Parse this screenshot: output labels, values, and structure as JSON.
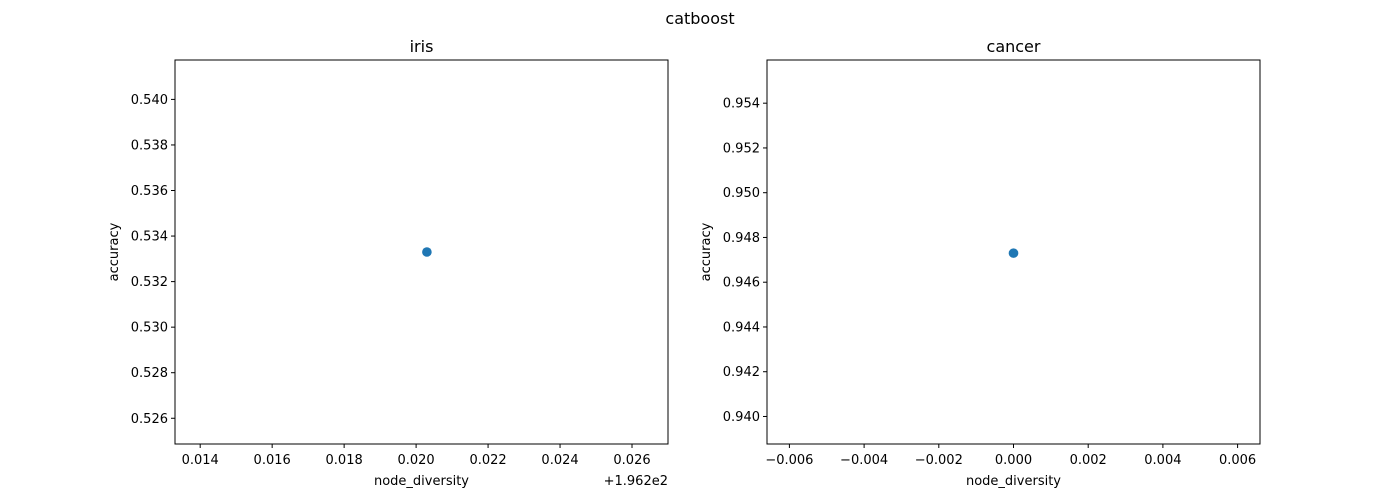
{
  "figure": {
    "suptitle": "catboost",
    "point_color": "#1f77b4"
  },
  "chart_data": [
    {
      "type": "scatter",
      "title": "iris",
      "xlabel": "node_diversity",
      "ylabel": "accuracy",
      "x_offset_label": "+1.962e2",
      "xlim": [
        0.0133,
        0.027
      ],
      "ylim": [
        0.52487,
        0.54173
      ],
      "xticks": [
        0.014,
        0.016,
        0.018,
        0.02,
        0.022,
        0.024,
        0.026
      ],
      "xtick_labels": [
        "0.014",
        "0.016",
        "0.018",
        "0.020",
        "0.022",
        "0.024",
        "0.026"
      ],
      "yticks": [
        0.526,
        0.528,
        0.53,
        0.532,
        0.534,
        0.536,
        0.538,
        0.54
      ],
      "ytick_labels": [
        "0.526",
        "0.528",
        "0.530",
        "0.532",
        "0.534",
        "0.536",
        "0.538",
        "0.540"
      ],
      "grid": false,
      "series": [
        {
          "x": [
            0.0203
          ],
          "y": [
            0.5333
          ]
        }
      ]
    },
    {
      "type": "scatter",
      "title": "cancer",
      "xlabel": "node_diversity",
      "ylabel": "accuracy",
      "x_offset_label": "",
      "xlim": [
        -0.0066,
        0.0066
      ],
      "ylim": [
        0.93877,
        0.95593
      ],
      "xticks": [
        -0.006,
        -0.004,
        -0.002,
        0.0,
        0.002,
        0.004,
        0.006
      ],
      "xtick_labels": [
        "−0.006",
        "−0.004",
        "−0.002",
        "0.000",
        "0.002",
        "0.004",
        "0.006"
      ],
      "yticks": [
        0.94,
        0.942,
        0.944,
        0.946,
        0.948,
        0.95,
        0.952,
        0.954
      ],
      "ytick_labels": [
        "0.940",
        "0.942",
        "0.944",
        "0.946",
        "0.948",
        "0.950",
        "0.952",
        "0.954"
      ],
      "grid": false,
      "series": [
        {
          "x": [
            0.0
          ],
          "y": [
            0.9473
          ]
        }
      ]
    }
  ]
}
